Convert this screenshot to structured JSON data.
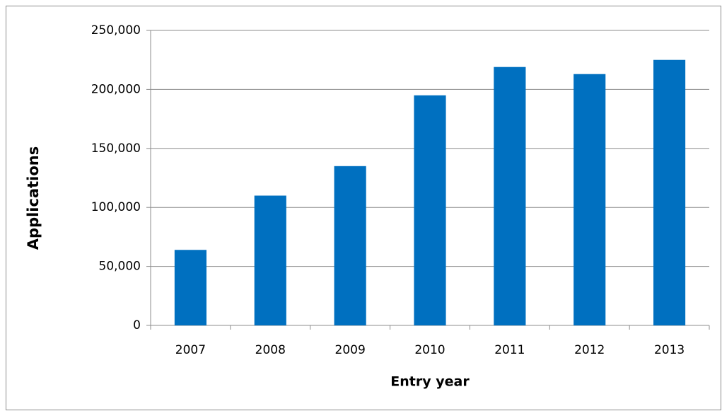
{
  "chart_data": {
    "type": "bar",
    "categories": [
      "2007",
      "2008",
      "2009",
      "2010",
      "2011",
      "2012",
      "2013"
    ],
    "values": [
      64000,
      110000,
      135000,
      195000,
      219000,
      213000,
      225000
    ],
    "color": "#0070c0",
    "xlabel": "Entry year",
    "ylabel": "Applications",
    "ylim": [
      0,
      250000
    ],
    "yticks": [
      0,
      {
        "value": 50000,
        "label": "50,000"
      },
      {
        "value": 100000,
        "label": "100,000"
      },
      {
        "value": 150000,
        "label": "150,000"
      },
      {
        "value": 200000,
        "label": "200,000"
      },
      {
        "value": 250000,
        "label": "250,000"
      }
    ],
    "grid": true
  }
}
